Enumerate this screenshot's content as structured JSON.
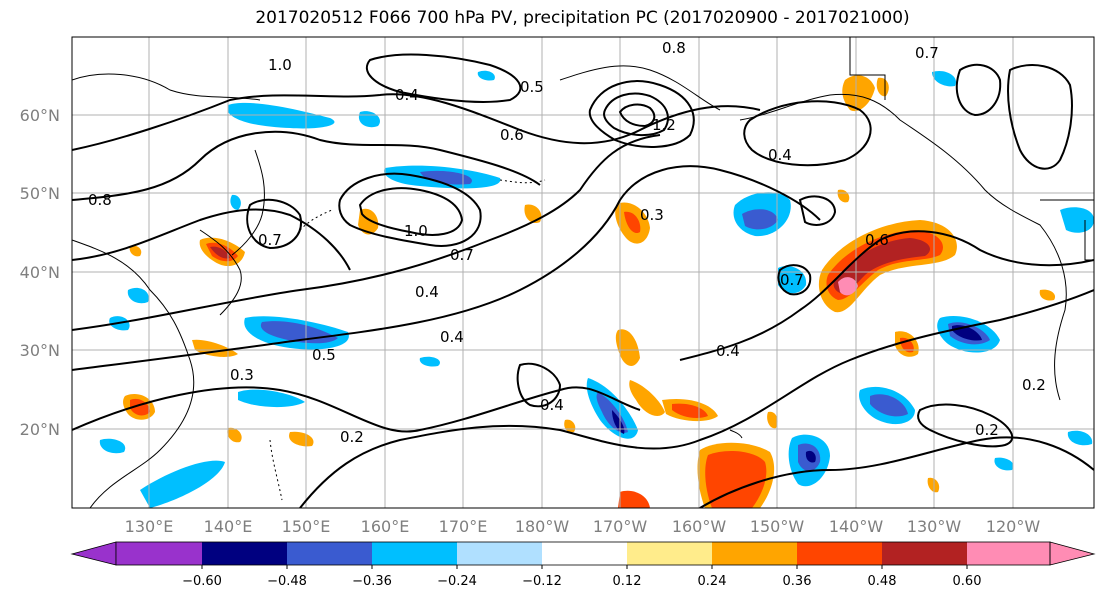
{
  "title": "2017020512 F066 700 hPa PV, precipitation PC (2017020900 - 2017021000)",
  "map": {
    "lat_labels": [
      "60°N",
      "50°N",
      "40°N",
      "30°N",
      "20°N"
    ],
    "lon_labels": [
      "130°E",
      "140°E",
      "150°E",
      "160°E",
      "170°E",
      "180°W",
      "170°W",
      "160°W",
      "150°W",
      "140°W",
      "130°W",
      "120°W"
    ],
    "contour_labels": [
      "0.8",
      "1.0",
      "0.6",
      "0.5",
      "0.4",
      "0.7",
      "0.3",
      "0.2",
      "1.2"
    ]
  },
  "colorbar": {
    "tick_labels": [
      "−0.60",
      "−0.48",
      "−0.36",
      "−0.24",
      "−0.12",
      "0.12",
      "0.24",
      "0.36",
      "0.48",
      "0.60"
    ],
    "colors": [
      "#9932cc",
      "#000080",
      "#3a5bd0",
      "#00bfff",
      "#b0e0ff",
      "#ffffff",
      "#ffec8b",
      "#ffa500",
      "#ff4500",
      "#b22222",
      "#ff8cb4"
    ]
  }
}
